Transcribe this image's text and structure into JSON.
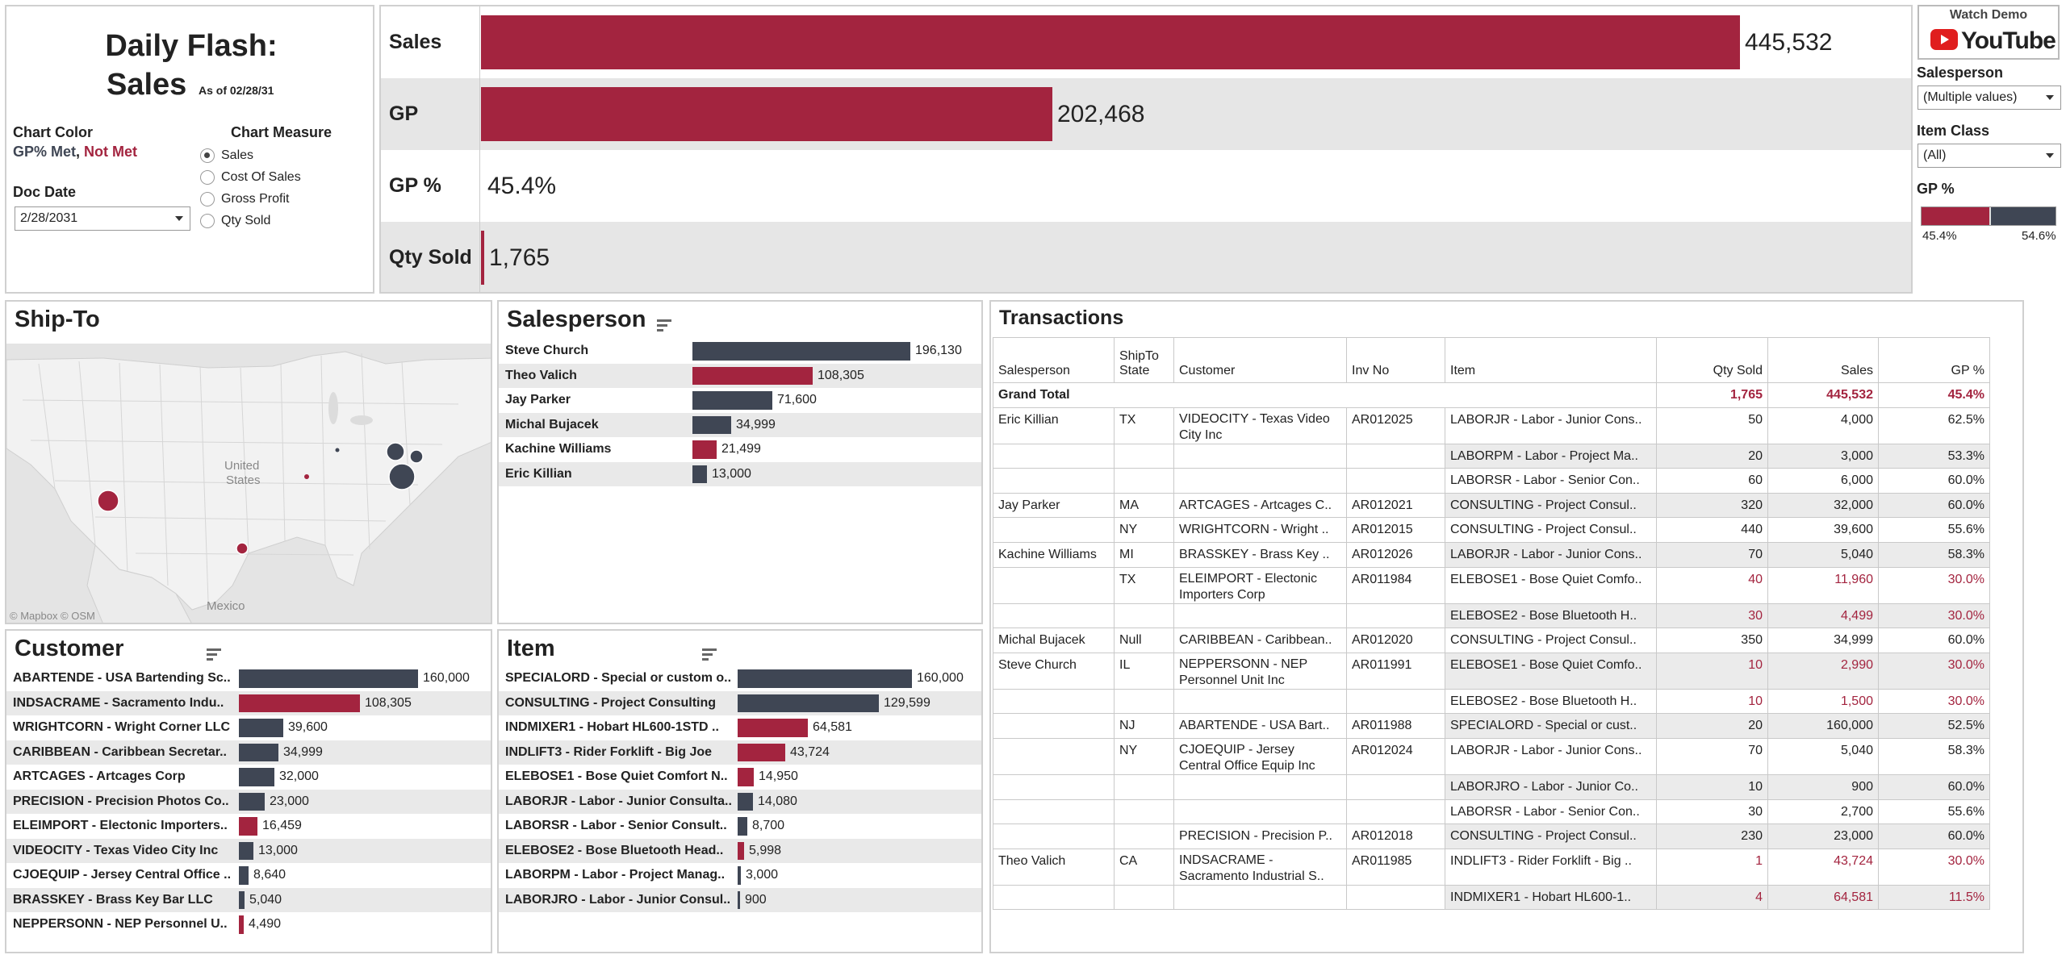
{
  "title": {
    "line1": "Daily Flash:",
    "line2": "Sales",
    "as_of": "As of 02/28/31",
    "chart_color_label": "Chart Color",
    "gp_met": "GP% Met",
    "comma": ",",
    "not_met": "Not Met",
    "chart_measure_label": "Chart Measure",
    "measures": [
      "Sales",
      "Cost Of Sales",
      "Gross Profit",
      "Qty Sold"
    ],
    "selected_measure": "Sales",
    "doc_date_label": "Doc Date",
    "doc_date_value": "2/28/2031"
  },
  "colors": {
    "met": "#3f4654",
    "not_met": "#a3243f",
    "shade": "#e9e9e9"
  },
  "kpis": [
    {
      "label": "Sales",
      "value": "445,532",
      "fraction": 1.0
    },
    {
      "label": "GP",
      "value": "202,468",
      "fraction": 0.454
    },
    {
      "label": "GP %",
      "value": "45.4%",
      "fraction": 0
    },
    {
      "label": "Qty Sold",
      "value": "1,765",
      "fraction": 0.003
    }
  ],
  "filters": {
    "watch_demo": "Watch Demo",
    "youtube": "YouTube",
    "salesperson_label": "Salesperson",
    "salesperson_value": "(Multiple values)",
    "item_class_label": "Item Class",
    "item_class_value": "(All)",
    "gp_pct_label": "GP %",
    "gp_min": "45.4%",
    "gp_max": "54.6%"
  },
  "shipto": {
    "title": "Ship-To",
    "map_labels": {
      "country1": "United",
      "country2": "States",
      "mexico": "Mexico",
      "attribution": "© Mapbox  © OSM"
    }
  },
  "salesperson": {
    "title": "Salesperson",
    "max": 196130,
    "rows": [
      {
        "name": "Steve Church",
        "value": 196130,
        "label": "196,130",
        "met": true
      },
      {
        "name": "Theo Valich",
        "value": 108305,
        "label": "108,305",
        "met": false
      },
      {
        "name": "Jay Parker",
        "value": 71600,
        "label": "71,600",
        "met": true
      },
      {
        "name": "Michal Bujacek",
        "value": 34999,
        "label": "34,999",
        "met": true
      },
      {
        "name": "Kachine Williams",
        "value": 21499,
        "label": "21,499",
        "met": false
      },
      {
        "name": "Eric Killian",
        "value": 13000,
        "label": "13,000",
        "met": true
      }
    ]
  },
  "customer": {
    "title": "Customer",
    "max": 160000,
    "rows": [
      {
        "name": "ABARTENDE  -  USA Bartending Sc..",
        "value": 160000,
        "label": "160,000",
        "met": true
      },
      {
        "name": "INDSACRAME  -  Sacramento Indu..",
        "value": 108305,
        "label": "108,305",
        "met": false
      },
      {
        "name": "WRIGHTCORN  -  Wright Corner LLC",
        "value": 39600,
        "label": "39,600",
        "met": true
      },
      {
        "name": "CARIBBEAN  -  Caribbean Secretar..",
        "value": 34999,
        "label": "34,999",
        "met": true
      },
      {
        "name": "ARTCAGES  -  Artcages Corp",
        "value": 32000,
        "label": "32,000",
        "met": true
      },
      {
        "name": "PRECISION  -  Precision Photos Co..",
        "value": 23000,
        "label": "23,000",
        "met": true
      },
      {
        "name": "ELEIMPORT  -  Electonic Importers..",
        "value": 16459,
        "label": "16,459",
        "met": false
      },
      {
        "name": "VIDEOCITY  -  Texas Video City Inc",
        "value": 13000,
        "label": "13,000",
        "met": true
      },
      {
        "name": "CJOEQUIP  -  Jersey Central Office ..",
        "value": 8640,
        "label": "8,640",
        "met": true
      },
      {
        "name": "BRASSKEY  -  Brass Key Bar LLC",
        "value": 5040,
        "label": "5,040",
        "met": true
      },
      {
        "name": "NEPPERSONN  -  NEP Personnel U..",
        "value": 4490,
        "label": "4,490",
        "met": false
      }
    ]
  },
  "item": {
    "title": "Item",
    "max": 160000,
    "rows": [
      {
        "name": "SPECIALORD  -  Special or custom o..",
        "value": 160000,
        "label": "160,000",
        "met": true
      },
      {
        "name": "CONSULTING  -  Project Consulting",
        "value": 129599,
        "label": "129,599",
        "met": true
      },
      {
        "name": "INDMIXER1  -  Hobart HL600-1STD ..",
        "value": 64581,
        "label": "64,581",
        "met": false
      },
      {
        "name": "INDLIFT3  -  Rider Forklift - Big Joe",
        "value": 43724,
        "label": "43,724",
        "met": false
      },
      {
        "name": "ELEBOSE1  -  Bose Quiet Comfort N..",
        "value": 14950,
        "label": "14,950",
        "met": false
      },
      {
        "name": "LABORJR  -  Labor - Junior Consulta..",
        "value": 14080,
        "label": "14,080",
        "met": true
      },
      {
        "name": "LABORSR  -  Labor - Senior Consult..",
        "value": 8700,
        "label": "8,700",
        "met": true
      },
      {
        "name": "ELEBOSE2  -  Bose Bluetooth Head..",
        "value": 5998,
        "label": "5,998",
        "met": false
      },
      {
        "name": "LABORPM  -  Labor - Project Manag..",
        "value": 3000,
        "label": "3,000",
        "met": true
      },
      {
        "name": "LABORJRO  -  Labor - Junior Consul..",
        "value": 900,
        "label": "900",
        "met": true
      }
    ]
  },
  "transactions": {
    "title": "Transactions",
    "headers": {
      "salesperson": "Salesperson",
      "shipto1": "ShipTo",
      "shipto2": "State",
      "customer": "Customer",
      "inv": "Inv No",
      "item": "Item",
      "qty": "Qty Sold",
      "sales": "Sales",
      "gp": "GP %"
    },
    "grand_total": {
      "label": "Grand Total",
      "qty": "1,765",
      "sales": "445,532",
      "gp": "45.4%"
    },
    "rows": [
      {
        "sp": "Eric Killian",
        "st": "TX",
        "cu": "VIDEOCITY  -  Texas Video",
        "cu2": "City Inc",
        "inv": "AR012025",
        "item": "LABORJR  -  Labor - Junior Cons..",
        "qty": "50",
        "sales": "4,000",
        "gp": "62.5%",
        "red": false
      },
      {
        "sp": "",
        "st": "",
        "cu": "",
        "cu2": "",
        "inv": "",
        "item": "LABORPM  -  Labor - Project Ma..",
        "qty": "20",
        "sales": "3,000",
        "gp": "53.3%",
        "red": false
      },
      {
        "sp": "",
        "st": "",
        "cu": "",
        "cu2": "",
        "inv": "",
        "item": "LABORSR  -  Labor - Senior Con..",
        "qty": "60",
        "sales": "6,000",
        "gp": "60.0%",
        "red": false
      },
      {
        "sp": "Jay Parker",
        "st": "MA",
        "cu": "ARTCAGES  -  Artcages C..",
        "cu2": "",
        "inv": "AR012021",
        "item": "CONSULTING  -  Project Consul..",
        "qty": "320",
        "sales": "32,000",
        "gp": "60.0%",
        "red": false
      },
      {
        "sp": "",
        "st": "NY",
        "cu": "WRIGHTCORN  -  Wright ..",
        "cu2": "",
        "inv": "AR012015",
        "item": "CONSULTING  -  Project Consul..",
        "qty": "440",
        "sales": "39,600",
        "gp": "55.6%",
        "red": false
      },
      {
        "sp": "Kachine Williams",
        "st": "MI",
        "cu": "BRASSKEY  -  Brass Key ..",
        "cu2": "",
        "inv": "AR012026",
        "item": "LABORJR  -  Labor - Junior Cons..",
        "qty": "70",
        "sales": "5,040",
        "gp": "58.3%",
        "red": false
      },
      {
        "sp": "",
        "st": "TX",
        "cu": "ELEIMPORT  -  Electonic",
        "cu2": "Importers Corp",
        "inv": "AR011984",
        "item": "ELEBOSE1  -  Bose Quiet Comfo..",
        "qty": "40",
        "sales": "11,960",
        "gp": "30.0%",
        "red": true
      },
      {
        "sp": "",
        "st": "",
        "cu": "",
        "cu2": "",
        "inv": "",
        "item": "ELEBOSE2  -  Bose Bluetooth H..",
        "qty": "30",
        "sales": "4,499",
        "gp": "30.0%",
        "red": true
      },
      {
        "sp": "Michal Bujacek",
        "st": "Null",
        "cu": "CARIBBEAN  -  Caribbean..",
        "cu2": "",
        "inv": "AR012020",
        "item": "CONSULTING  -  Project Consul..",
        "qty": "350",
        "sales": "34,999",
        "gp": "60.0%",
        "red": false
      },
      {
        "sp": "Steve Church",
        "st": "IL",
        "cu": "NEPPERSONN  -  NEP",
        "cu2": "Personnel Unit Inc",
        "inv": "AR011991",
        "item": "ELEBOSE1  -  Bose Quiet Comfo..",
        "qty": "10",
        "sales": "2,990",
        "gp": "30.0%",
        "red": true
      },
      {
        "sp": "",
        "st": "",
        "cu": "",
        "cu2": "",
        "inv": "",
        "item": "ELEBOSE2  -  Bose Bluetooth H..",
        "qty": "10",
        "sales": "1,500",
        "gp": "30.0%",
        "red": true
      },
      {
        "sp": "",
        "st": "NJ",
        "cu": "ABARTENDE  -  USA Bart..",
        "cu2": "",
        "inv": "AR011988",
        "item": "SPECIALORD  -  Special or cust..",
        "qty": "20",
        "sales": "160,000",
        "gp": "52.5%",
        "red": false
      },
      {
        "sp": "",
        "st": "NY",
        "cu": "CJOEQUIP  -  Jersey",
        "cu2": "Central Office Equip Inc",
        "inv": "AR012024",
        "item": "LABORJR  -  Labor - Junior Cons..",
        "qty": "70",
        "sales": "5,040",
        "gp": "58.3%",
        "red": false
      },
      {
        "sp": "",
        "st": "",
        "cu": "",
        "cu2": "",
        "inv": "",
        "item": "LABORJRO  -  Labor - Junior Co..",
        "qty": "10",
        "sales": "900",
        "gp": "60.0%",
        "red": false
      },
      {
        "sp": "",
        "st": "",
        "cu": "",
        "cu2": "",
        "inv": "",
        "item": "LABORSR  -  Labor - Senior Con..",
        "qty": "30",
        "sales": "2,700",
        "gp": "55.6%",
        "red": false
      },
      {
        "sp": "",
        "st": "",
        "cu": "PRECISION  -  Precision P..",
        "cu2": "",
        "inv": "AR012018",
        "item": "CONSULTING  -  Project Consul..",
        "qty": "230",
        "sales": "23,000",
        "gp": "60.0%",
        "red": false
      },
      {
        "sp": "Theo Valich",
        "st": "CA",
        "cu": "INDSACRAME  -",
        "cu2": "Sacramento Industrial S..",
        "inv": "AR011985",
        "item": "INDLIFT3  -  Rider Forklift - Big ..",
        "qty": "1",
        "sales": "43,724",
        "gp": "30.0%",
        "red": true
      },
      {
        "sp": "",
        "st": "",
        "cu": "",
        "cu2": "",
        "inv": "",
        "item": "INDMIXER1  -  Hobart HL600-1..",
        "qty": "4",
        "sales": "64,581",
        "gp": "11.5%",
        "red": true
      }
    ]
  }
}
